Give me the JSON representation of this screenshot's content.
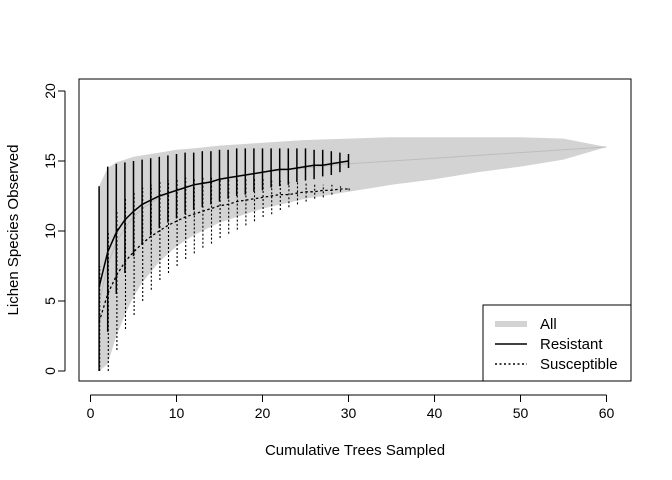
{
  "chart_data": {
    "type": "line",
    "title": "",
    "xlabel": "Cumulative Trees Sampled",
    "ylabel": "Lichen Species Observed",
    "xlim": [
      0,
      62
    ],
    "ylim": [
      0,
      20
    ],
    "xticks": [
      "0",
      "10",
      "20",
      "30",
      "40",
      "50",
      "60"
    ],
    "yticks": [
      "0",
      "5",
      "10",
      "15",
      "20"
    ],
    "legend_position": "bottom-right",
    "legend": [
      {
        "label": "All",
        "style": "thick-gray"
      },
      {
        "label": "Resistant",
        "style": "solid"
      },
      {
        "label": "Susceptible",
        "style": "dotted"
      }
    ],
    "series": [
      {
        "name": "All",
        "color": "#d3d3d3",
        "style": "band",
        "x": [
          1,
          2,
          3,
          4,
          5,
          6,
          8,
          10,
          12,
          15,
          20,
          25,
          30,
          35,
          40,
          45,
          50,
          55,
          60
        ],
        "mean": [
          4.8,
          7.6,
          9.2,
          10.2,
          11.0,
          11.6,
          12.4,
          12.9,
          13.3,
          13.7,
          14.2,
          14.5,
          14.8,
          15.0,
          15.2,
          15.4,
          15.6,
          15.8,
          16.0
        ],
        "lower": [
          0,
          0.5,
          2.5,
          4.0,
          5.3,
          6.3,
          7.8,
          8.9,
          9.7,
          10.6,
          11.6,
          12.3,
          12.8,
          13.3,
          13.7,
          14.2,
          14.6,
          15.1,
          16.0
        ],
        "upper": [
          13.2,
          14.5,
          14.9,
          15.1,
          15.3,
          15.4,
          15.6,
          15.8,
          15.9,
          16.1,
          16.3,
          16.5,
          16.6,
          16.7,
          16.7,
          16.7,
          16.7,
          16.6,
          16.0
        ]
      },
      {
        "name": "Resistant",
        "color": "#000000",
        "style": "solid",
        "x": [
          1,
          2,
          3,
          4,
          5,
          6,
          7,
          8,
          9,
          10,
          11,
          12,
          13,
          14,
          15,
          16,
          17,
          18,
          19,
          20,
          21,
          22,
          23,
          24,
          25,
          26,
          27,
          28,
          29,
          30
        ],
        "mean": [
          6.0,
          8.5,
          9.9,
          10.8,
          11.4,
          11.9,
          12.2,
          12.5,
          12.7,
          12.9,
          13.1,
          13.3,
          13.4,
          13.5,
          13.7,
          13.8,
          13.9,
          14.0,
          14.1,
          14.2,
          14.3,
          14.4,
          14.4,
          14.5,
          14.6,
          14.7,
          14.7,
          14.8,
          14.9,
          15.0
        ],
        "lower": [
          0,
          2.8,
          5.5,
          7.0,
          8.2,
          9.0,
          9.7,
          10.2,
          10.6,
          10.9,
          11.2,
          11.5,
          11.7,
          11.9,
          12.1,
          12.3,
          12.5,
          12.6,
          12.8,
          12.9,
          13.1,
          13.2,
          13.3,
          13.5,
          13.6,
          13.7,
          13.9,
          14.0,
          14.2,
          14.5
        ],
        "upper": [
          13.2,
          14.6,
          14.8,
          14.9,
          15.0,
          15.1,
          15.2,
          15.3,
          15.4,
          15.5,
          15.6,
          15.6,
          15.7,
          15.7,
          15.8,
          15.8,
          15.9,
          15.9,
          15.9,
          15.9,
          15.9,
          15.9,
          15.9,
          15.9,
          15.9,
          15.8,
          15.8,
          15.7,
          15.6,
          15.5
        ]
      },
      {
        "name": "Susceptible",
        "color": "#000000",
        "style": "dotted",
        "x": [
          1,
          2,
          3,
          4,
          5,
          6,
          7,
          8,
          9,
          10,
          11,
          12,
          13,
          14,
          15,
          16,
          17,
          18,
          19,
          20,
          21,
          22,
          23,
          24,
          25,
          26,
          27,
          28,
          29,
          30
        ],
        "mean": [
          3.5,
          5.5,
          6.8,
          7.8,
          8.5,
          9.1,
          9.6,
          10.0,
          10.4,
          10.7,
          11.0,
          11.2,
          11.4,
          11.6,
          11.8,
          11.9,
          12.1,
          12.2,
          12.3,
          12.4,
          12.5,
          12.6,
          12.6,
          12.7,
          12.8,
          12.8,
          12.9,
          12.9,
          13.0,
          13.0
        ],
        "lower": [
          0,
          0,
          1.5,
          3.0,
          4.0,
          5.0,
          5.8,
          6.5,
          7.0,
          7.5,
          8.0,
          8.4,
          8.8,
          9.1,
          9.5,
          9.8,
          10.1,
          10.4,
          10.7,
          11.0,
          11.2,
          11.5,
          11.7,
          11.9,
          12.1,
          12.3,
          12.4,
          12.6,
          12.8,
          12.9
        ],
        "upper": [
          7.5,
          10.0,
          11.5,
          12.3,
          12.8,
          13.1,
          13.3,
          13.5,
          13.6,
          13.7,
          13.8,
          13.8,
          13.8,
          13.8,
          13.8,
          13.8,
          13.8,
          13.7,
          13.7,
          13.7,
          13.6,
          13.6,
          13.5,
          13.5,
          13.4,
          13.4,
          13.3,
          13.3,
          13.2,
          13.1
        ]
      }
    ]
  }
}
